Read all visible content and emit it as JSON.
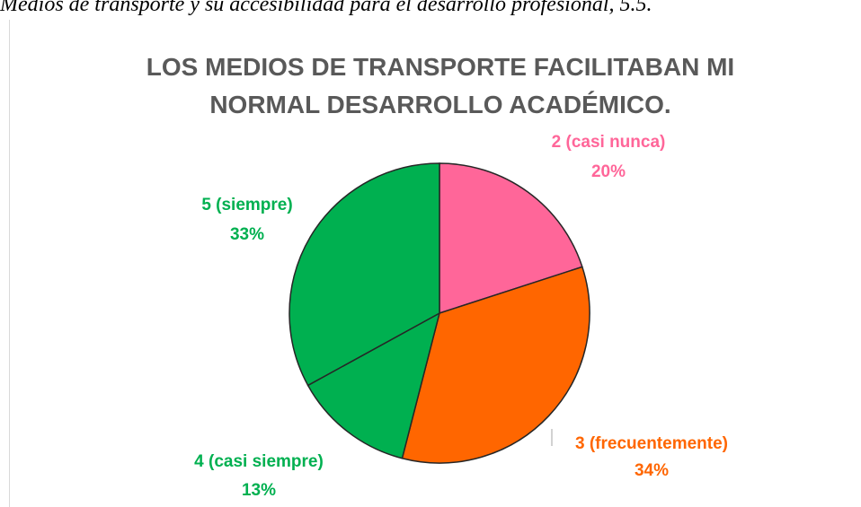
{
  "caption": "Medios de transporte y su accesibilidad para el desarrollo profesional, 5.5.",
  "chart_data": {
    "type": "pie",
    "title": [
      "LOS MEDIOS DE TRANSPORTE FACILITABAN MI",
      "NORMAL DESARROLLO ACADÉMICO."
    ],
    "categories": [
      "2 (casi nunca)",
      "3 (frecuentemente)",
      "4 (casi siempre)",
      "5 (siempre)"
    ],
    "values": [
      20,
      34,
      13,
      33
    ],
    "value_labels": [
      "20%",
      "34%",
      "13%",
      "33%"
    ],
    "colors": [
      "#ff6699",
      "#ff6600",
      "#00b050",
      "#00b050"
    ]
  }
}
